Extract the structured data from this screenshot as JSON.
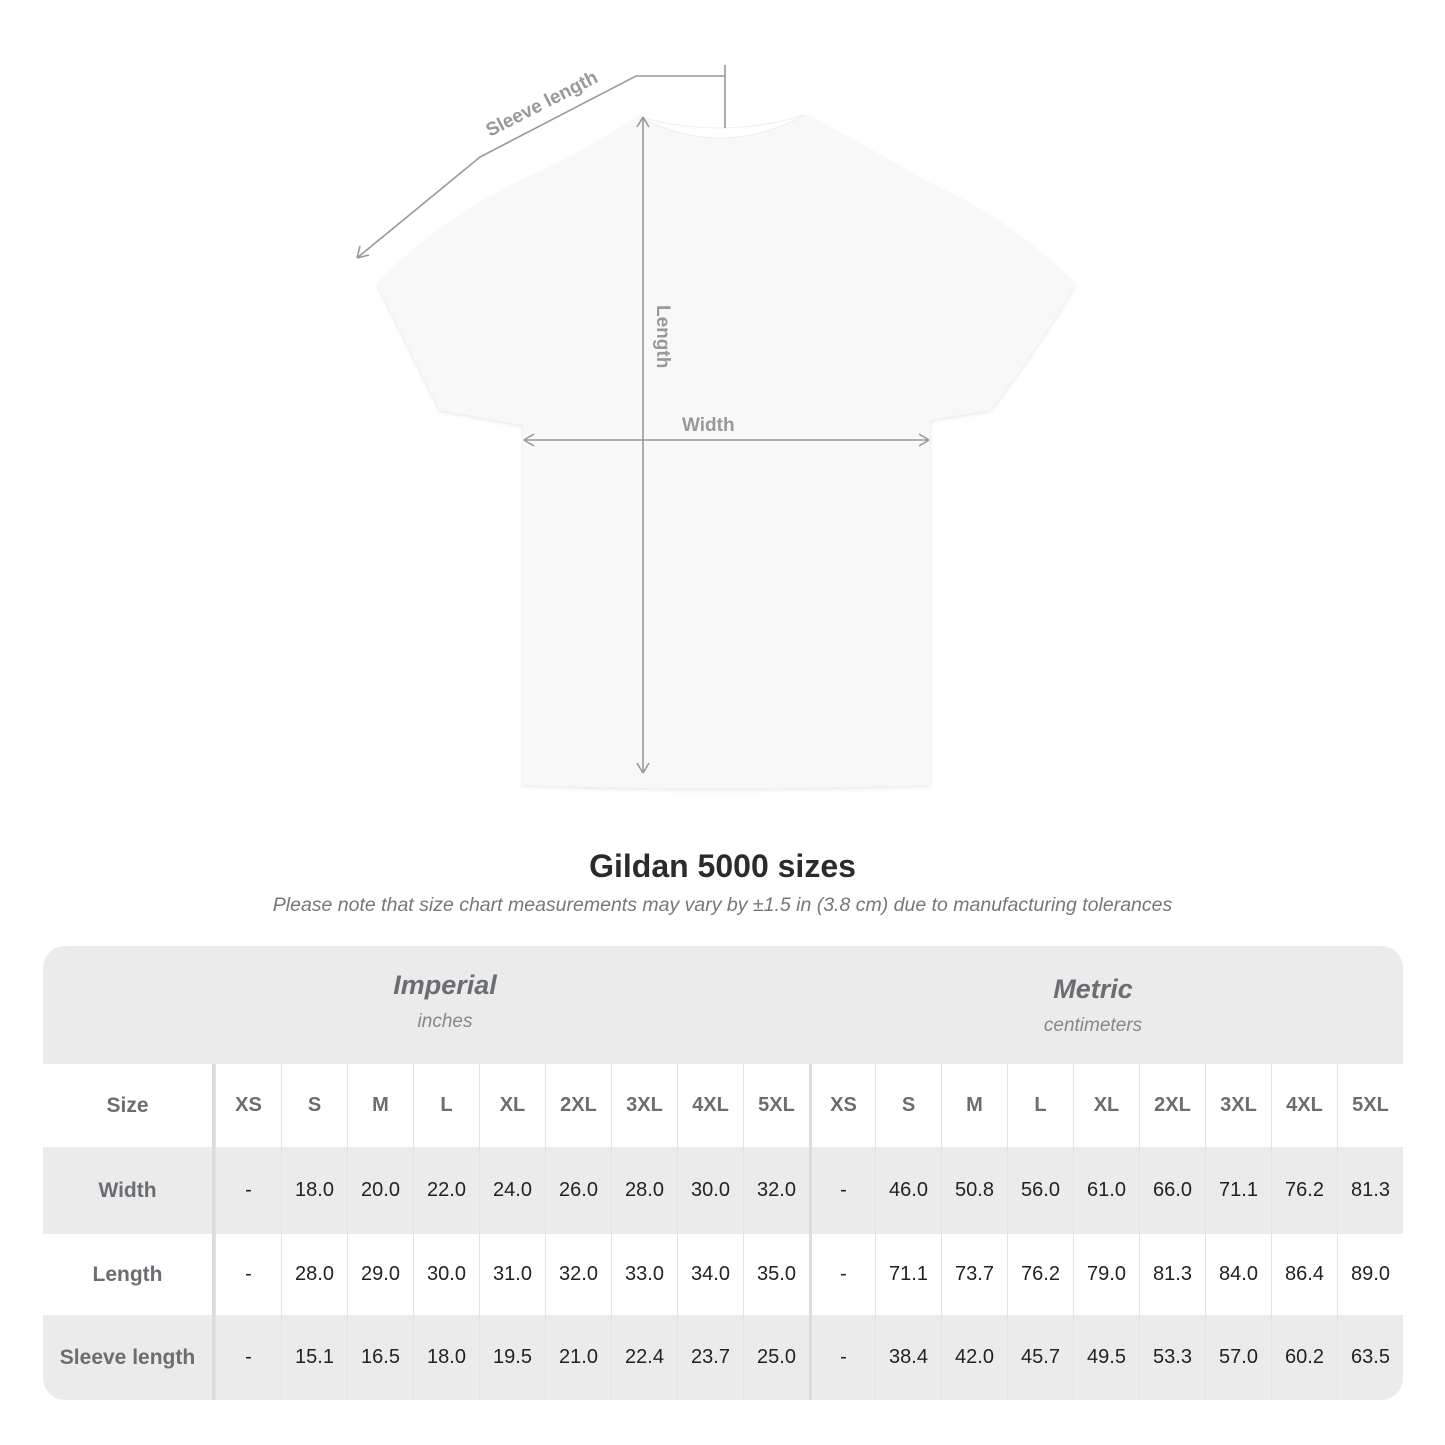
{
  "diagram": {
    "labels": {
      "sleeve": "Sleeve length",
      "length": "Length",
      "width": "Width"
    }
  },
  "title": "Gildan 5000 sizes",
  "subtitle": "Please note that size chart measurements may vary by ±1.5 in (3.8 cm) due to manufacturing tolerances",
  "table": {
    "imperial": {
      "name": "Imperial",
      "unit": "inches"
    },
    "metric": {
      "name": "Metric",
      "unit": "centimeters"
    },
    "size_label": "Size",
    "sizes": [
      "XS",
      "S",
      "M",
      "L",
      "XL",
      "2XL",
      "3XL",
      "4XL",
      "5XL"
    ],
    "rows": [
      {
        "label": "Width",
        "imperial": [
          "-",
          "18.0",
          "20.0",
          "22.0",
          "24.0",
          "26.0",
          "28.0",
          "30.0",
          "32.0"
        ],
        "metric": [
          "-",
          "46.0",
          "50.8",
          "56.0",
          "61.0",
          "66.0",
          "71.1",
          "76.2",
          "81.3"
        ]
      },
      {
        "label": "Length",
        "imperial": [
          "-",
          "28.0",
          "29.0",
          "30.0",
          "31.0",
          "32.0",
          "33.0",
          "34.0",
          "35.0"
        ],
        "metric": [
          "-",
          "71.1",
          "73.7",
          "76.2",
          "79.0",
          "81.3",
          "84.0",
          "86.4",
          "89.0"
        ]
      },
      {
        "label": "Sleeve length",
        "imperial": [
          "-",
          "15.1",
          "16.5",
          "18.0",
          "19.5",
          "21.0",
          "22.4",
          "23.7",
          "25.0"
        ],
        "metric": [
          "-",
          "38.4",
          "42.0",
          "45.7",
          "49.5",
          "53.3",
          "57.0",
          "60.2",
          "63.5"
        ]
      }
    ]
  },
  "colors": {
    "header_bg": "#ebebeb",
    "label_text": "#6a6e72",
    "measure_line": "#999999"
  }
}
